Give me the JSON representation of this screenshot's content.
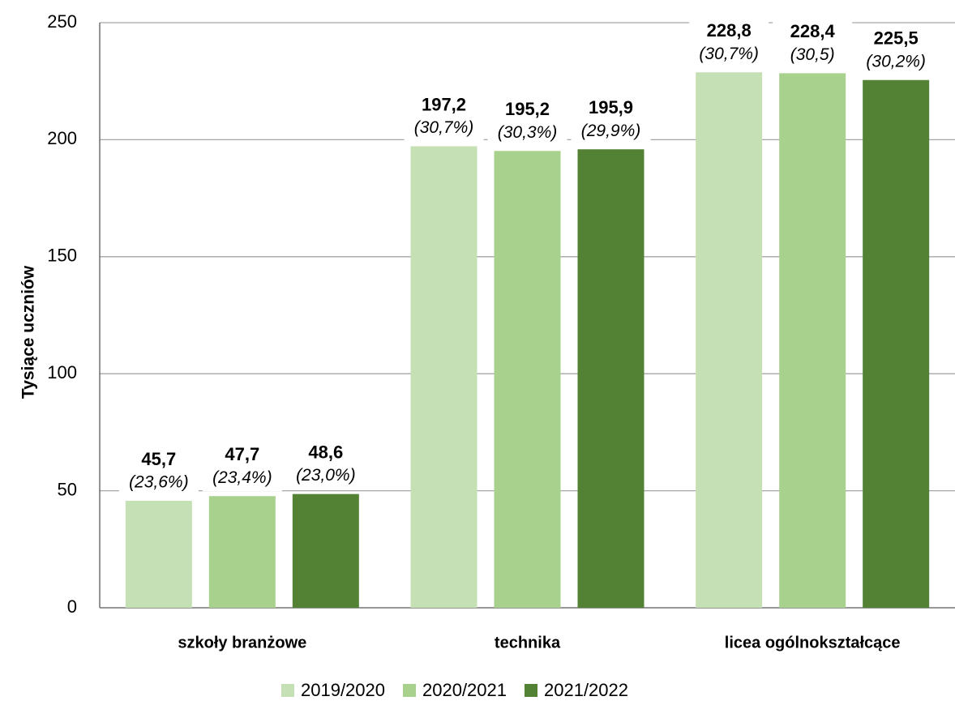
{
  "chart_data": {
    "type": "bar",
    "y_label": "Tysiące uczniów",
    "categories": [
      "szkoły branżowe",
      "technika",
      "licea ogólnokształcące"
    ],
    "series": [
      {
        "name": "2019/2020",
        "color": "#c5e0b4",
        "values": [
          45.7,
          197.2,
          228.8
        ],
        "value_labels": [
          "45,7",
          "197,2",
          "228,8"
        ],
        "share_labels": [
          "(23,6%)",
          "(30,7%)",
          "(30,7%)"
        ]
      },
      {
        "name": "2020/2021",
        "color": "#a9d18e",
        "values": [
          47.7,
          195.2,
          228.4
        ],
        "value_labels": [
          "47,7",
          "195,2",
          "228,4"
        ],
        "share_labels": [
          "(23,4%)",
          "(30,3%)",
          "(30,5)"
        ]
      },
      {
        "name": "2021/2022",
        "color": "#548235",
        "values": [
          48.6,
          195.9,
          225.5
        ],
        "value_labels": [
          "48,6",
          "195,9",
          "225,5"
        ],
        "share_labels": [
          "(23,0%)",
          "(29,9%)",
          "(30,2%)"
        ]
      }
    ],
    "ylim": [
      0,
      250
    ],
    "yticks": [
      0,
      50,
      100,
      150,
      200,
      250
    ],
    "grid": true,
    "legend": "bottom"
  }
}
